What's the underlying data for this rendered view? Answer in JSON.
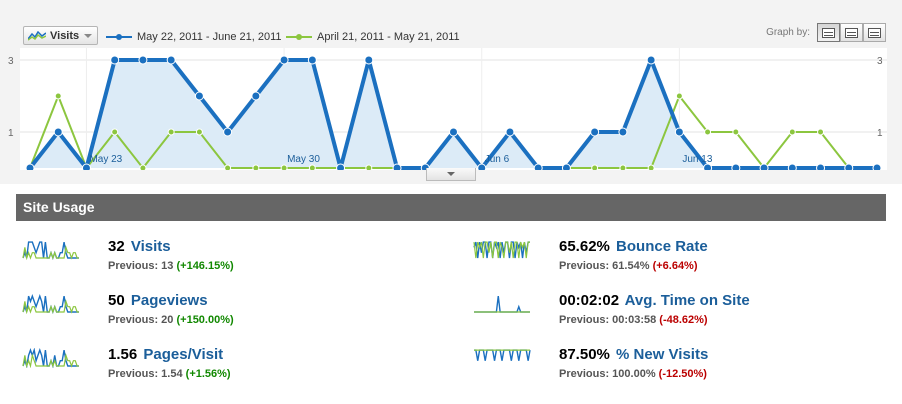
{
  "toolbar": {
    "metric_label": "Visits",
    "legend_current": "May 22, 2011 - June 21, 2011",
    "legend_previous": "April 21, 2011 - May 21, 2011",
    "graph_by_label": "Graph by:",
    "graph_by_options": [
      "day",
      "week",
      "month"
    ],
    "graph_by_selected": "day"
  },
  "colors": {
    "current": "#1b70c0",
    "previous": "#8cc63f",
    "fill": "#dcebf7",
    "header_bg": "#666666",
    "link": "#1b5e9a",
    "positive": "#118800",
    "negative": "#bb0000"
  },
  "graph": {
    "y_ticks": [
      {
        "value": 1,
        "text": "1"
      },
      {
        "value": 3,
        "text": "3"
      }
    ],
    "y_max": 3,
    "x_labels": [
      {
        "index": 2,
        "text": "May 23"
      },
      {
        "index": 9,
        "text": "May 30"
      },
      {
        "index": 16,
        "text": "Jun 6"
      },
      {
        "index": 23,
        "text": "Jun 13"
      }
    ],
    "current": [
      0,
      1,
      0,
      3,
      3,
      3,
      2,
      1,
      2,
      3,
      3,
      0,
      3,
      0,
      0,
      1,
      0,
      1,
      0,
      0,
      1,
      1,
      3,
      1,
      0,
      0,
      0,
      0,
      0,
      0,
      0
    ],
    "previous": [
      0,
      2,
      0,
      1,
      0,
      1,
      1,
      0,
      0,
      0,
      0,
      0,
      0,
      0,
      0,
      1,
      0,
      1,
      0,
      0,
      0,
      0,
      0,
      2,
      1,
      1,
      0,
      1,
      1,
      0,
      0
    ]
  },
  "site_usage": {
    "title": "Site Usage",
    "stats": [
      {
        "value": "32",
        "label": "Visits",
        "prev": "Previous: 13",
        "delta": "(+146.15%)",
        "dir": "up"
      },
      {
        "value": "50",
        "label": "Pageviews",
        "prev": "Previous: 20",
        "delta": "(+150.00%)",
        "dir": "up"
      },
      {
        "value": "1.56",
        "label": "Pages/Visit",
        "prev": "Previous: 1.54",
        "delta": "(+1.56%)",
        "dir": "up"
      },
      {
        "value": "65.62%",
        "label": "Bounce Rate",
        "prev": "Previous: 61.54%",
        "delta": "(+6.64%)",
        "dir": "down"
      },
      {
        "value": "00:02:02",
        "label": "Avg. Time on Site",
        "prev": "Previous: 00:03:58",
        "delta": "(-48.62%)",
        "dir": "down"
      },
      {
        "value": "87.50%",
        "label": "% New Visits",
        "prev": "Previous: 100.00%",
        "delta": "(-12.50%)",
        "dir": "down"
      }
    ]
  },
  "sparklines": [
    {
      "current": [
        0,
        1,
        0,
        3,
        3,
        3,
        2,
        1,
        2,
        3,
        3,
        0,
        3,
        0,
        0,
        1,
        0,
        1,
        0,
        0,
        1,
        1,
        3,
        1,
        0,
        0,
        0,
        0,
        0,
        0,
        0
      ],
      "previous": [
        0,
        2,
        0,
        1,
        0,
        1,
        1,
        0,
        0,
        0,
        0,
        0,
        0,
        0,
        0,
        1,
        0,
        1,
        0,
        0,
        0,
        0,
        0,
        2,
        1,
        1,
        0,
        1,
        1,
        0,
        0
      ]
    },
    {
      "current": [
        0,
        1,
        0,
        3,
        2,
        3,
        2,
        1,
        2,
        3,
        2,
        0,
        3,
        0,
        0,
        1,
        0,
        1,
        0,
        0,
        1,
        1,
        3,
        1,
        0,
        0,
        0,
        0,
        0,
        0,
        0
      ],
      "previous": [
        0,
        2,
        0,
        1,
        0,
        1,
        1,
        0,
        0,
        0,
        0,
        0,
        0,
        0,
        0,
        1,
        0,
        1,
        0,
        0,
        0,
        0,
        0,
        2,
        1,
        1,
        0,
        1,
        1,
        0,
        0
      ]
    },
    {
      "current": [
        0,
        1,
        0,
        2,
        3,
        2,
        3,
        1,
        2,
        3,
        2,
        0,
        3,
        0,
        0,
        1,
        0,
        2,
        0,
        0,
        1,
        1,
        3,
        1,
        0,
        0,
        0,
        0,
        0,
        0,
        0
      ],
      "previous": [
        0,
        2,
        0,
        1,
        0,
        2,
        1,
        0,
        0,
        0,
        0,
        0,
        0,
        0,
        0,
        1,
        0,
        1,
        0,
        0,
        0,
        0,
        0,
        2,
        1,
        1,
        0,
        1,
        1,
        0,
        0
      ]
    },
    {
      "current": [
        2,
        3,
        0,
        3,
        1,
        3,
        3,
        0,
        3,
        3,
        0,
        3,
        2,
        3,
        0,
        3,
        1,
        3,
        3,
        0,
        3,
        3,
        0,
        3,
        2,
        3,
        0,
        3,
        1,
        3,
        3
      ],
      "previous": [
        3,
        0,
        3,
        2,
        3,
        0,
        3,
        3,
        1,
        3,
        0,
        3,
        3,
        0,
        3,
        2,
        0,
        3,
        3,
        1,
        3,
        0,
        3,
        3,
        0,
        3,
        2,
        3,
        0,
        3,
        3
      ]
    },
    {
      "current": [
        0,
        0,
        0,
        0,
        0,
        0,
        0,
        0,
        0,
        0,
        0,
        0,
        0,
        3,
        0,
        0,
        0,
        0,
        0,
        0,
        0,
        0,
        0,
        0,
        1,
        0,
        0,
        0,
        0,
        0,
        0
      ],
      "previous": [
        0,
        0,
        0,
        0,
        0,
        0,
        0,
        0,
        0,
        0,
        0,
        0,
        0,
        0,
        0,
        0,
        0,
        0,
        0,
        0,
        0,
        0,
        0,
        0,
        0,
        0,
        0,
        0,
        0,
        0,
        0
      ]
    },
    {
      "current": [
        3,
        3,
        1,
        3,
        3,
        3,
        1,
        3,
        3,
        3,
        3,
        1,
        3,
        3,
        3,
        1,
        3,
        3,
        3,
        3,
        1,
        3,
        3,
        3,
        1,
        3,
        3,
        3,
        3,
        1,
        3
      ],
      "previous": [
        3,
        3,
        3,
        3,
        3,
        3,
        3,
        3,
        3,
        3,
        3,
        3,
        3,
        3,
        3,
        3,
        3,
        3,
        3,
        3,
        3,
        3,
        3,
        3,
        3,
        3,
        3,
        3,
        3,
        3,
        3
      ]
    }
  ]
}
